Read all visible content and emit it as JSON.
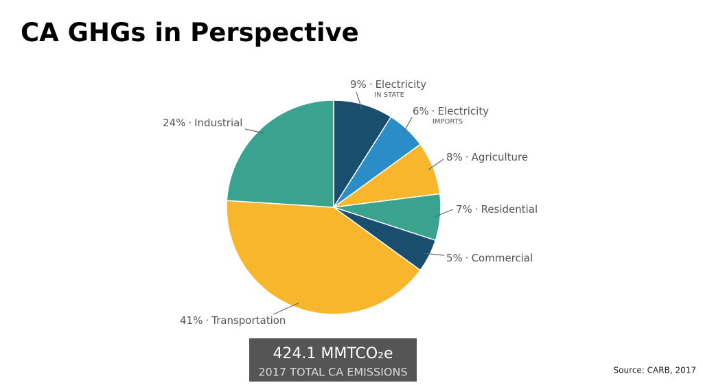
{
  "chart_data": {
    "type": "pie",
    "title": "CA GHGs in Perspective",
    "categories": [
      "Electricity",
      "Electricity",
      "Agriculture",
      "Residential",
      "Commercial",
      "Transportation",
      "Industrial"
    ],
    "sublabels": [
      "IN STATE",
      "IMPORTS",
      null,
      null,
      null,
      null,
      null
    ],
    "values": [
      9,
      6,
      8,
      7,
      5,
      41,
      24
    ],
    "value_labels": [
      "9%",
      "6%",
      "8%",
      "7%",
      "5%",
      "41%",
      "24%"
    ],
    "separator": "·",
    "colors": [
      "#1a4e6e",
      "#2a8dc8",
      "#f8b62c",
      "#3aa38f",
      "#1a4e6e",
      "#f8b62c",
      "#3aa38f"
    ],
    "total_label": "424.1 MMTCO₂e",
    "total_caption": "2017 TOTAL CA EMISSIONS",
    "source": "Source: CARB, 2017"
  }
}
